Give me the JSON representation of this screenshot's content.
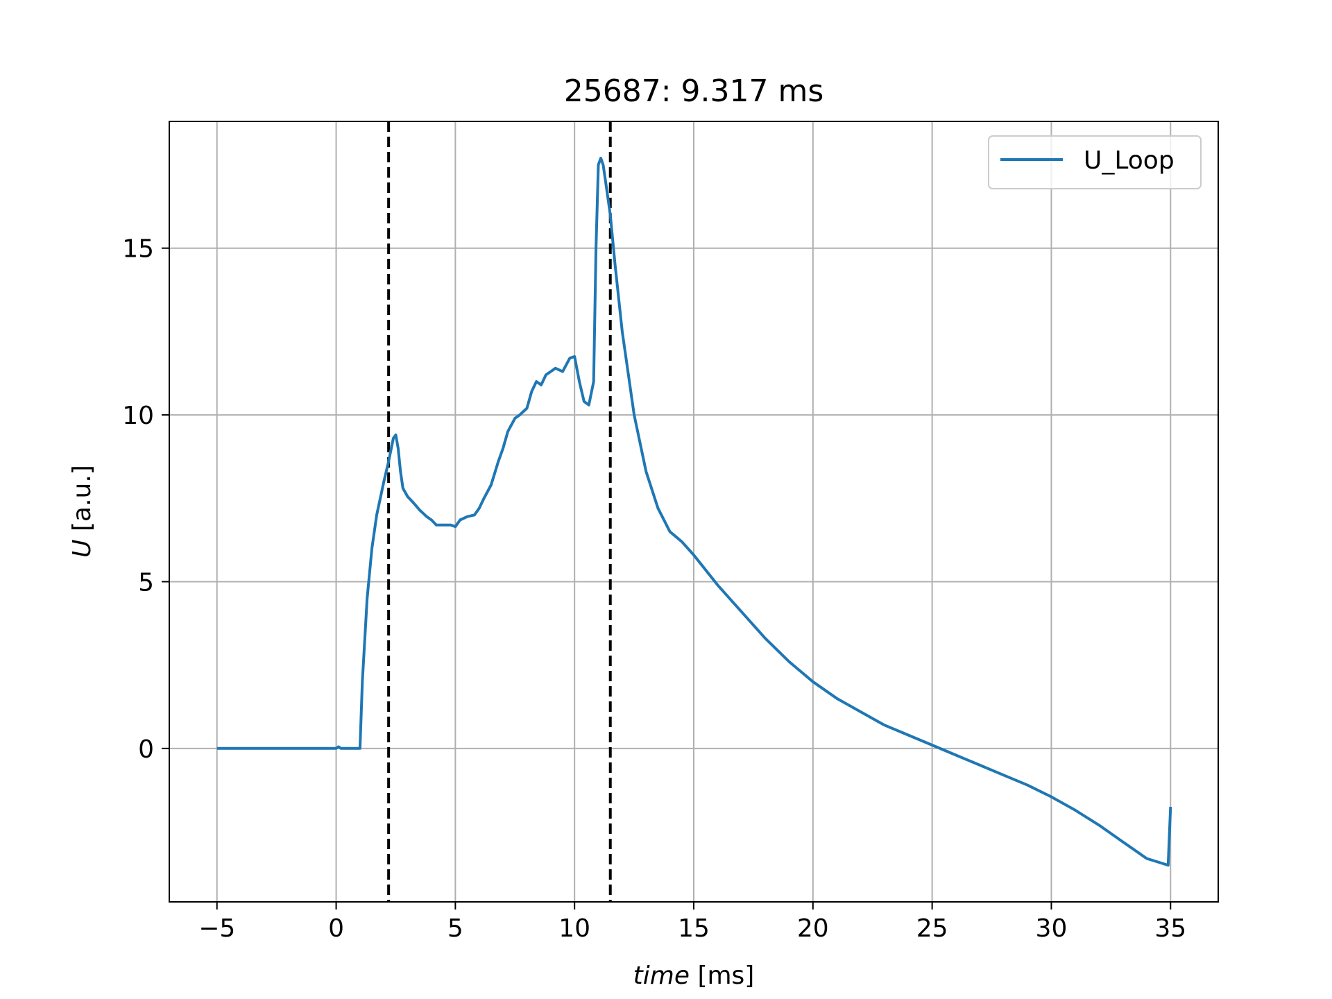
{
  "chart_data": {
    "type": "line",
    "title": "25687: 9.317 ms",
    "xlabel_var": "time",
    "xlabel_unit": "[ms]",
    "ylabel_var": "U",
    "ylabel_unit": "[a.u.]",
    "xlim": [
      -7,
      37
    ],
    "ylim": [
      -4.6,
      18.8
    ],
    "xticks": [
      -5,
      0,
      5,
      10,
      15,
      20,
      25,
      30,
      35
    ],
    "xtick_labels": [
      "−5",
      "0",
      "5",
      "10",
      "15",
      "20",
      "25",
      "30",
      "35"
    ],
    "yticks": [
      0,
      5,
      10,
      15
    ],
    "ytick_labels": [
      "0",
      "5",
      "10",
      "15"
    ],
    "grid": true,
    "legend_position": "top-right",
    "vlines": [
      2.2,
      11.5
    ],
    "colors": {
      "series": "#1f77b4",
      "vline": "#000000",
      "grid": "#b0b0b0"
    },
    "series": [
      {
        "name": "U_Loop",
        "x": [
          -5,
          0,
          0.1,
          0.2,
          1.0,
          1.1,
          1.3,
          1.5,
          1.7,
          2.0,
          2.2,
          2.4,
          2.5,
          2.6,
          2.7,
          2.8,
          3.0,
          3.2,
          3.5,
          3.8,
          4.0,
          4.2,
          4.5,
          4.8,
          5.0,
          5.2,
          5.5,
          5.8,
          6.0,
          6.2,
          6.5,
          6.8,
          7.0,
          7.2,
          7.5,
          7.7,
          8.0,
          8.2,
          8.4,
          8.6,
          8.8,
          9.0,
          9.2,
          9.5,
          9.8,
          10.0,
          10.2,
          10.4,
          10.6,
          10.8,
          10.9,
          11.0,
          11.1,
          11.2,
          11.3,
          11.4,
          11.5,
          11.7,
          12.0,
          12.5,
          13.0,
          13.5,
          14.0,
          14.5,
          15.0,
          16.0,
          17.0,
          18.0,
          19.0,
          20.0,
          21.0,
          22.0,
          23.0,
          24.0,
          25.0,
          26.0,
          27.0,
          28.0,
          29.0,
          30.0,
          31.0,
          32.0,
          33.0,
          34.0,
          34.9,
          35.0
        ],
        "values": [
          0,
          0,
          0.05,
          0,
          0,
          2.0,
          4.5,
          6.0,
          7.0,
          8.0,
          8.6,
          9.3,
          9.4,
          9.0,
          8.3,
          7.8,
          7.55,
          7.4,
          7.15,
          6.95,
          6.85,
          6.7,
          6.7,
          6.7,
          6.65,
          6.85,
          6.95,
          7.0,
          7.2,
          7.5,
          7.9,
          8.6,
          9.0,
          9.5,
          9.9,
          10.0,
          10.2,
          10.7,
          11.0,
          10.9,
          11.2,
          11.3,
          11.4,
          11.3,
          11.7,
          11.75,
          11.0,
          10.4,
          10.3,
          11.0,
          15.0,
          17.5,
          17.7,
          17.5,
          17.0,
          16.5,
          16.0,
          14.5,
          12.5,
          10.0,
          8.3,
          7.2,
          6.5,
          6.2,
          5.8,
          4.9,
          4.1,
          3.3,
          2.6,
          2.0,
          1.5,
          1.1,
          0.7,
          0.4,
          0.1,
          -0.2,
          -0.5,
          -0.8,
          -1.1,
          -1.45,
          -1.85,
          -2.3,
          -2.8,
          -3.3,
          -3.5,
          -1.75
        ]
      }
    ]
  }
}
